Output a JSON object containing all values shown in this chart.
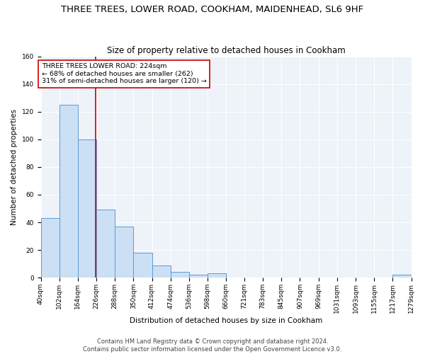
{
  "title": "THREE TREES, LOWER ROAD, COOKHAM, MAIDENHEAD, SL6 9HF",
  "subtitle": "Size of property relative to detached houses in Cookham",
  "xlabel": "Distribution of detached houses by size in Cookham",
  "ylabel": "Number of detached properties",
  "bin_edges": [
    40,
    102,
    164,
    226,
    288,
    350,
    412,
    474,
    536,
    598,
    660,
    721,
    783,
    845,
    907,
    969,
    1031,
    1093,
    1155,
    1217,
    1279
  ],
  "bin_labels": [
    "40sqm",
    "102sqm",
    "164sqm",
    "226sqm",
    "288sqm",
    "350sqm",
    "412sqm",
    "474sqm",
    "536sqm",
    "598sqm",
    "660sqm",
    "721sqm",
    "783sqm",
    "845sqm",
    "907sqm",
    "969sqm",
    "1031sqm",
    "1093sqm",
    "1155sqm",
    "1217sqm",
    "1279sqm"
  ],
  "counts": [
    43,
    125,
    100,
    49,
    37,
    18,
    9,
    4,
    2,
    3,
    0,
    0,
    0,
    0,
    0,
    0,
    0,
    0,
    0,
    2
  ],
  "bar_color": "#cce0f5",
  "bar_edge_color": "#5b9bd5",
  "property_value": 224,
  "vline_color": "#cc0000",
  "annotation_line1": "THREE TREES LOWER ROAD: 224sqm",
  "annotation_line2": "← 68% of detached houses are smaller (262)",
  "annotation_line3": "31% of semi-detached houses are larger (120) →",
  "annotation_box_edge_color": "#cc0000",
  "ylim": [
    0,
    160
  ],
  "yticks": [
    0,
    20,
    40,
    60,
    80,
    100,
    120,
    140,
    160
  ],
  "footer_line1": "Contains HM Land Registry data © Crown copyright and database right 2024.",
  "footer_line2": "Contains public sector information licensed under the Open Government Licence v3.0.",
  "bg_color": "#eef2f9",
  "grid_color": "#ffffff",
  "fig_bg_color": "#ffffff",
  "title_fontsize": 9.5,
  "subtitle_fontsize": 8.5,
  "label_fontsize": 7.5,
  "tick_fontsize": 6.5,
  "annot_fontsize": 6.8,
  "footer_fontsize": 6
}
